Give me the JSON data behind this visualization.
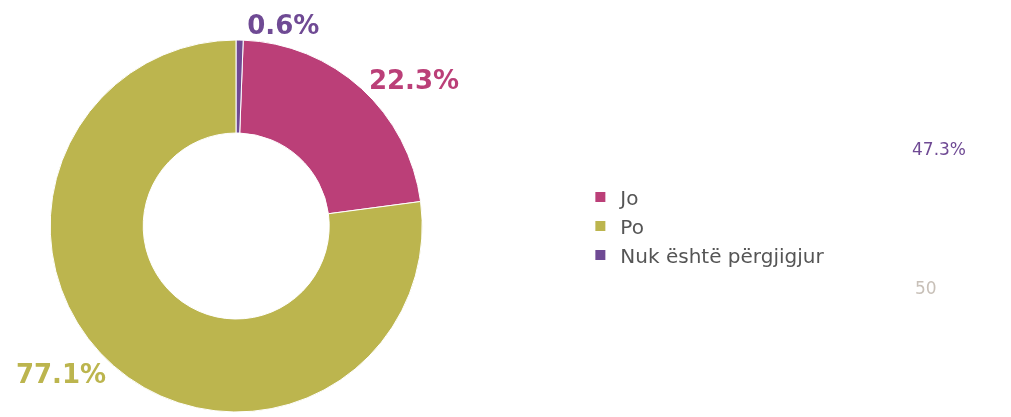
{
  "chart_data": {
    "type": "donut",
    "categories": [
      "Jo",
      "Po",
      "Nuk është përgjigjur"
    ],
    "values": [
      22.3,
      77.1,
      0.6
    ],
    "colors": [
      "#bb3f78",
      "#bcb54e",
      "#6f4a94"
    ],
    "value_labels": [
      "22.3%",
      "77.1%",
      "0.6%"
    ],
    "legend": "right",
    "annotations": [
      "47.3%",
      "50"
    ]
  }
}
